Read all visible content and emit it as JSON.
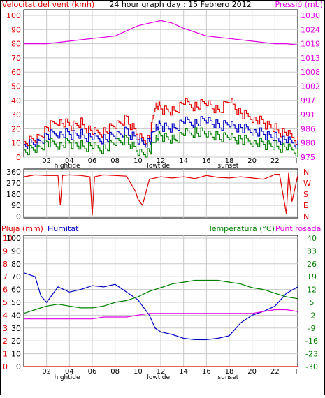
{
  "header": {
    "left_title": "Velocitat del vent (kmh)",
    "center_title": "24 hour graph day : 15 Febrero 2012",
    "right_title": "Pressió (mb)"
  },
  "colors": {
    "red": "#e00000",
    "blue": "#0000c0",
    "green": "#008000",
    "magenta": "#e000e0",
    "grid": "#c8c8c8",
    "frame": "#000000"
  },
  "x_axis": {
    "hour_labels": [
      "02",
      "04",
      "06",
      "08",
      "10",
      "12",
      "14",
      "16",
      "18",
      "20",
      "22",
      "I"
    ],
    "tide_labels": [
      {
        "text": "hightide",
        "at": 3.8
      },
      {
        "text": "lowtide",
        "at": 11.8
      },
      {
        "text": "sunset",
        "at": 17.9
      }
    ]
  },
  "chart_data": [
    {
      "type": "line",
      "title": "24 hour graph day : 15 Febrero 2012",
      "ylabel": "Velocitat del vent (kmh)",
      "y2label": "Pressió (mb)",
      "ylim": [
        0,
        100
      ],
      "y_ticks": [
        0,
        10,
        20,
        30,
        40,
        50,
        60,
        70,
        80,
        90,
        100
      ],
      "y2_ticks": [
        975,
        980,
        986,
        991,
        997,
        1002,
        1008,
        1013,
        1019,
        1024,
        1030
      ],
      "xlim": [
        0,
        24
      ],
      "series": [
        {
          "name": "gust",
          "color": "red",
          "axis": "left",
          "x": [
            0,
            1,
            2,
            3,
            4,
            5,
            6,
            7,
            8,
            9,
            10,
            11,
            11.5,
            12,
            13,
            14,
            15,
            16,
            17,
            18,
            19,
            20,
            21,
            22,
            23,
            24
          ],
          "y": [
            11,
            13,
            20,
            26,
            22,
            24,
            17,
            18,
            22,
            27,
            15,
            12,
            38,
            34,
            32,
            38,
            36,
            38,
            32,
            41,
            30,
            28,
            24,
            20,
            16,
            12
          ]
        },
        {
          "name": "mean",
          "color": "blue",
          "axis": "left",
          "x": [
            0,
            1,
            2,
            3,
            4,
            5,
            6,
            7,
            8,
            9,
            10,
            11,
            11.5,
            12,
            13,
            14,
            15,
            16,
            17,
            18,
            19,
            20,
            21,
            22,
            23,
            24
          ],
          "y": [
            9,
            10,
            15,
            17,
            16,
            16,
            13,
            13,
            15,
            18,
            12,
            10,
            22,
            22,
            20,
            25,
            24,
            26,
            22,
            24,
            20,
            19,
            16,
            14,
            11,
            9
          ]
        },
        {
          "name": "min",
          "color": "green",
          "axis": "left",
          "x": [
            0,
            1,
            2,
            3,
            4,
            5,
            6,
            7,
            8,
            9,
            10,
            11,
            11.5,
            12,
            13,
            14,
            15,
            16,
            17,
            18,
            19,
            20,
            21,
            22,
            23,
            24
          ],
          "y": [
            5,
            6,
            10,
            9,
            10,
            8,
            7,
            6,
            10,
            12,
            4,
            3,
            14,
            15,
            12,
            16,
            18,
            16,
            14,
            15,
            12,
            11,
            9,
            8,
            6,
            4
          ]
        },
        {
          "name": "pressure",
          "color": "magenta",
          "axis": "right",
          "x": [
            0,
            2,
            4,
            6,
            8,
            10,
            11,
            12,
            13,
            14,
            16,
            18,
            20,
            22,
            23,
            24
          ],
          "y": [
            1019,
            1019,
            1020,
            1021,
            1022,
            1026,
            1027,
            1028,
            1027,
            1025,
            1022,
            1021,
            1020,
            1019,
            1019,
            1018.5
          ]
        }
      ]
    },
    {
      "type": "scatter",
      "ylabel": "",
      "ylim": [
        0,
        360
      ],
      "y_ticks": [
        0,
        90,
        180,
        270,
        360
      ],
      "y2_ticks": [
        "N",
        "W",
        "S",
        "E",
        "N"
      ],
      "series": [
        {
          "name": "direction",
          "color": "red",
          "x": [
            0,
            1,
            2,
            3,
            3.2,
            3.4,
            4,
            5,
            5.8,
            6,
            6.2,
            7,
            8,
            9,
            9.8,
            10,
            10.4,
            11,
            12,
            13,
            14,
            15,
            16,
            17,
            18,
            19,
            20,
            21,
            21.8,
            22,
            22.4,
            23,
            23.2,
            23.5,
            24
          ],
          "y": [
            320,
            335,
            330,
            330,
            90,
            330,
            335,
            330,
            320,
            10,
            320,
            335,
            330,
            325,
            200,
            140,
            90,
            300,
            320,
            310,
            320,
            305,
            330,
            315,
            310,
            320,
            310,
            300,
            330,
            340,
            340,
            20,
            350,
            120,
            330
          ]
        }
      ]
    },
    {
      "type": "line",
      "ylabel": "Pluja (mm)",
      "series_labels": [
        "Humitat",
        "Temperatura (°C)",
        "Punt rosada"
      ],
      "ylim": [
        0,
        100
      ],
      "y_ticks": [
        0,
        10,
        20,
        30,
        40,
        50,
        60,
        70,
        80,
        90,
        100
      ],
      "rain_ticks": [
        "0",
        "1",
        "2",
        "3",
        "4",
        "5",
        "6",
        "7",
        "8",
        "9",
        "10"
      ],
      "y2lim": [
        -30,
        40
      ],
      "y2_ticks": [
        40,
        33,
        26,
        19,
        12,
        5,
        -2,
        -9,
        -16,
        -23,
        -30
      ],
      "series": [
        {
          "name": "Humitat",
          "color": "blue",
          "axis": "left",
          "x": [
            0,
            1,
            1.5,
            2,
            3,
            4,
            5,
            6,
            7,
            8,
            9,
            10,
            10.5,
            11,
            11.5,
            12,
            13,
            14,
            15,
            16,
            17,
            18,
            19,
            20,
            21,
            22,
            23,
            24
          ],
          "y": [
            73,
            70,
            55,
            50,
            62,
            58,
            60,
            63,
            62,
            64,
            58,
            52,
            46,
            40,
            30,
            27,
            25,
            22,
            21,
            21,
            22,
            24,
            34,
            40,
            43,
            47,
            57,
            62
          ]
        },
        {
          "name": "Temperatura (°C)",
          "color": "green",
          "axis": "right",
          "x": [
            0,
            1,
            2,
            3,
            4,
            5,
            6,
            7,
            8,
            9,
            10,
            11,
            12,
            13,
            14,
            15,
            16,
            17,
            18,
            19,
            20,
            21,
            22,
            23,
            24
          ],
          "y": [
            -1,
            1,
            3,
            4,
            3,
            2,
            2,
            3,
            5,
            6,
            8,
            11,
            13,
            15,
            16,
            17,
            17,
            17,
            16,
            15,
            13,
            12,
            10,
            8,
            7
          ]
        },
        {
          "name": "Punt rosada",
          "color": "magenta",
          "axis": "right",
          "x": [
            0,
            1,
            2,
            3,
            4,
            5,
            6,
            7,
            8,
            9,
            10,
            11,
            12,
            13,
            14,
            15,
            16,
            17,
            18,
            19,
            20,
            21,
            22,
            23,
            24
          ],
          "y": [
            -4,
            -4,
            -4,
            -4,
            -4,
            -4,
            -4,
            -3,
            -3,
            -3,
            -2,
            -1,
            -1,
            -1,
            -1,
            -1,
            -1,
            -1,
            -1,
            -1,
            -1,
            0,
            1,
            1,
            0
          ]
        },
        {
          "name": "rain",
          "color": "red",
          "axis": "rain",
          "x": [
            0,
            24
          ],
          "y": [
            0,
            0
          ]
        }
      ]
    }
  ]
}
